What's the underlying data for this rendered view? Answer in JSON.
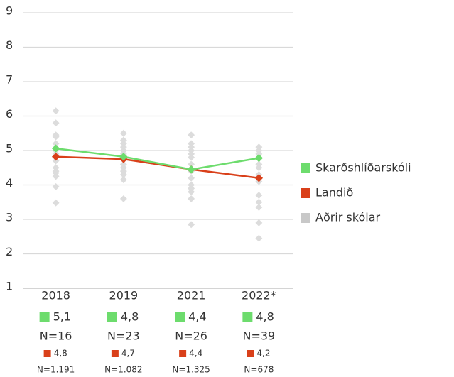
{
  "chart_data": {
    "type": "line",
    "categories": [
      "2018",
      "2019",
      "2021",
      "2022*"
    ],
    "ylim": [
      1,
      9
    ],
    "yticks": [
      1,
      2,
      3,
      4,
      5,
      6,
      7,
      8,
      9
    ],
    "grid": true,
    "legend": "right",
    "series": [
      {
        "name": "Skarðshlíðarskóli",
        "color": "#6ddc6d",
        "values": [
          5.06,
          4.82,
          4.45,
          4.78
        ],
        "value_labels": [
          "5,1",
          "4,8",
          "4,4",
          "4,8"
        ],
        "n_labels": [
          "N=16",
          "N=23",
          "N=26",
          "N=39"
        ]
      },
      {
        "name": "Landið",
        "color": "#d9401a",
        "values": [
          4.82,
          4.75,
          4.45,
          4.2
        ],
        "value_labels": [
          "4,8",
          "4,7",
          "4,4",
          "4,2"
        ],
        "n_labels": [
          "N=1.191",
          "N=1.082",
          "N=1.325",
          "N=678"
        ]
      },
      {
        "name": "Aðrir skólar",
        "color": "#c8c8c8",
        "values": [
          [
            6.15,
            5.8,
            5.45,
            5.4,
            5.2,
            5.0,
            4.9,
            4.7,
            4.5,
            4.4,
            4.35,
            4.25,
            3.95,
            3.48
          ],
          [
            5.5,
            5.3,
            5.2,
            5.1,
            5.0,
            4.9,
            4.85,
            4.6,
            4.5,
            4.4,
            4.3,
            4.15,
            3.6
          ],
          [
            5.45,
            5.2,
            5.1,
            5.0,
            4.9,
            4.8,
            4.6,
            4.4,
            4.2,
            4.0,
            3.9,
            3.8,
            3.6,
            2.85
          ],
          [
            5.1,
            5.0,
            4.9,
            4.6,
            4.5,
            4.3,
            4.1,
            3.7,
            3.5,
            3.35,
            2.9,
            2.45
          ]
        ]
      }
    ]
  }
}
